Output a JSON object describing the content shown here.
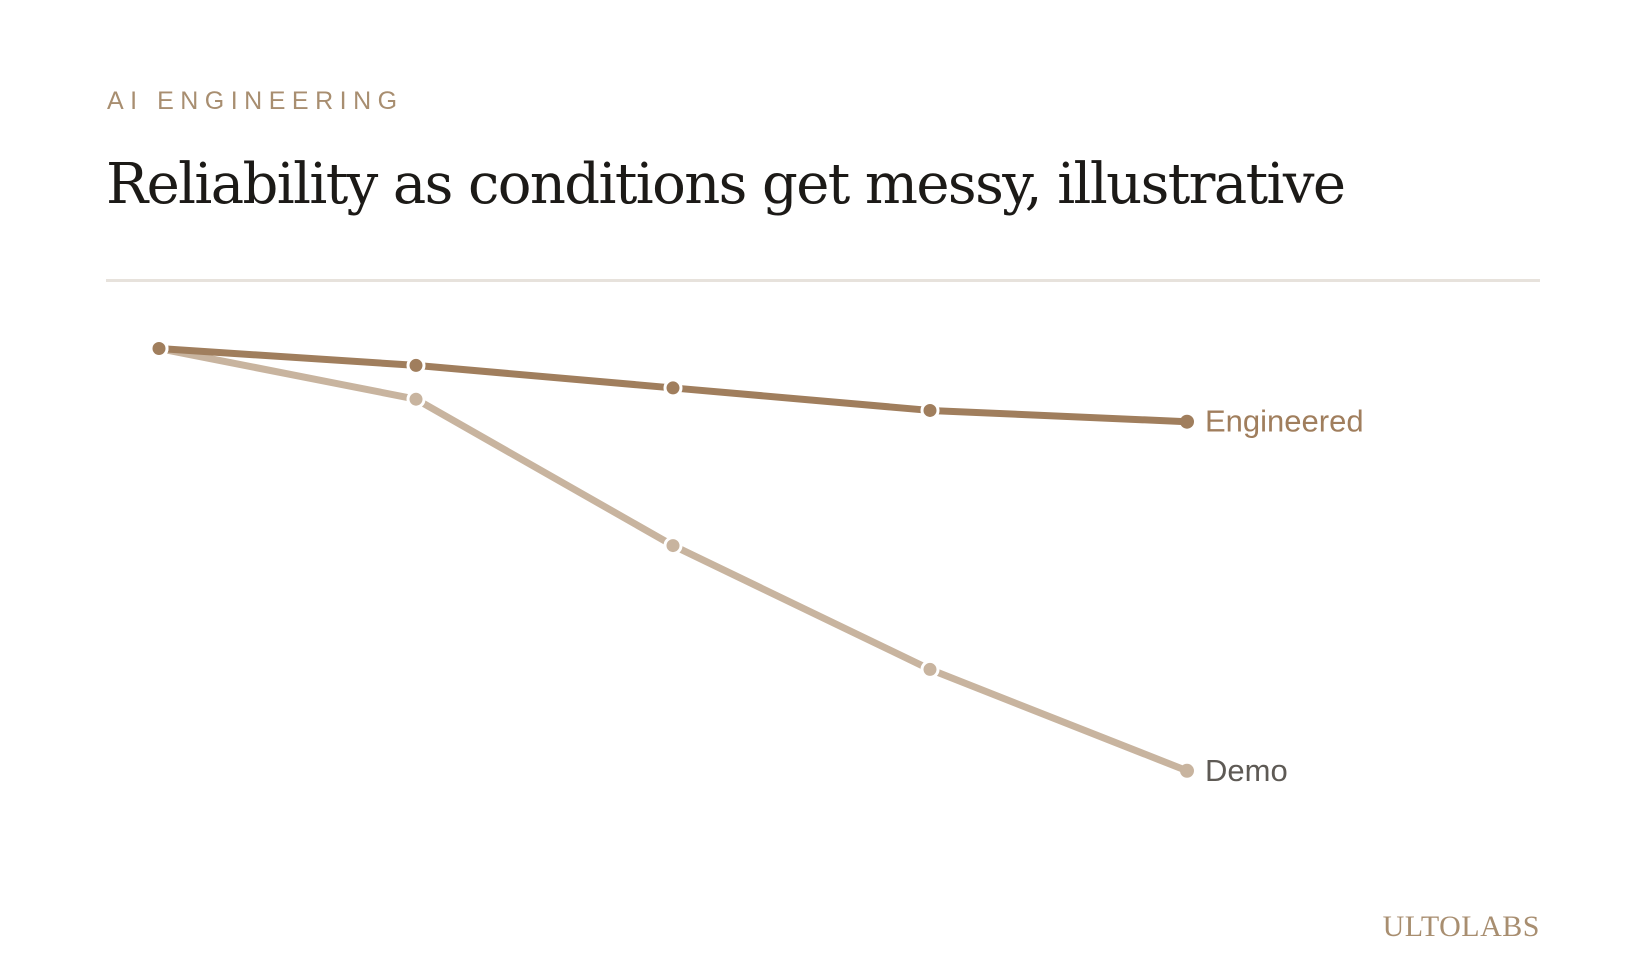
{
  "header": {
    "eyebrow": "AI ENGINEERING",
    "title": "Reliability as conditions get messy, illustrative"
  },
  "brand": {
    "name": "ULTOLABS"
  },
  "colors": {
    "engineered": "#a07e5d",
    "demo": "#c8b49f",
    "demo_label": "#5e5a55",
    "accent": "#a88e70",
    "rule": "#e7e2dc"
  },
  "chart_data": {
    "type": "line",
    "x": [
      1,
      2,
      3,
      4,
      5
    ],
    "ylim": [
      0,
      100
    ],
    "grid": false,
    "legend": "inline-end-labels",
    "series": [
      {
        "name": "Engineered",
        "values": [
          96,
          93,
          89,
          85,
          83
        ]
      },
      {
        "name": "Demo",
        "values": [
          96,
          87,
          61,
          39,
          21
        ]
      }
    ]
  }
}
